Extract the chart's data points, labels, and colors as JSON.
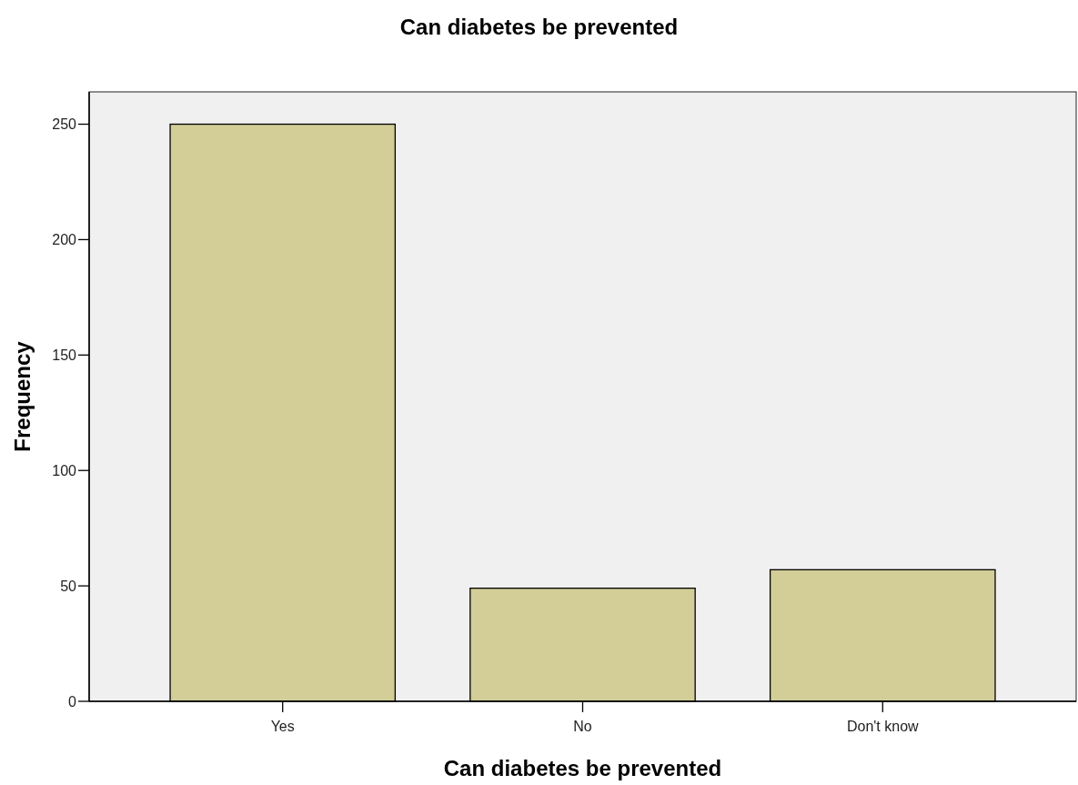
{
  "chart_data": {
    "type": "bar",
    "title": "Can diabetes be prevented",
    "xlabel": "Can diabetes be prevented",
    "ylabel": "Frequency",
    "categories": [
      "Yes",
      "No",
      "Don't know"
    ],
    "values": [
      250,
      49,
      57
    ],
    "color": "#d3ce97",
    "ylim": [
      0,
      264
    ],
    "yticks": [
      0,
      50,
      100,
      150,
      200,
      250
    ],
    "grid": false
  }
}
